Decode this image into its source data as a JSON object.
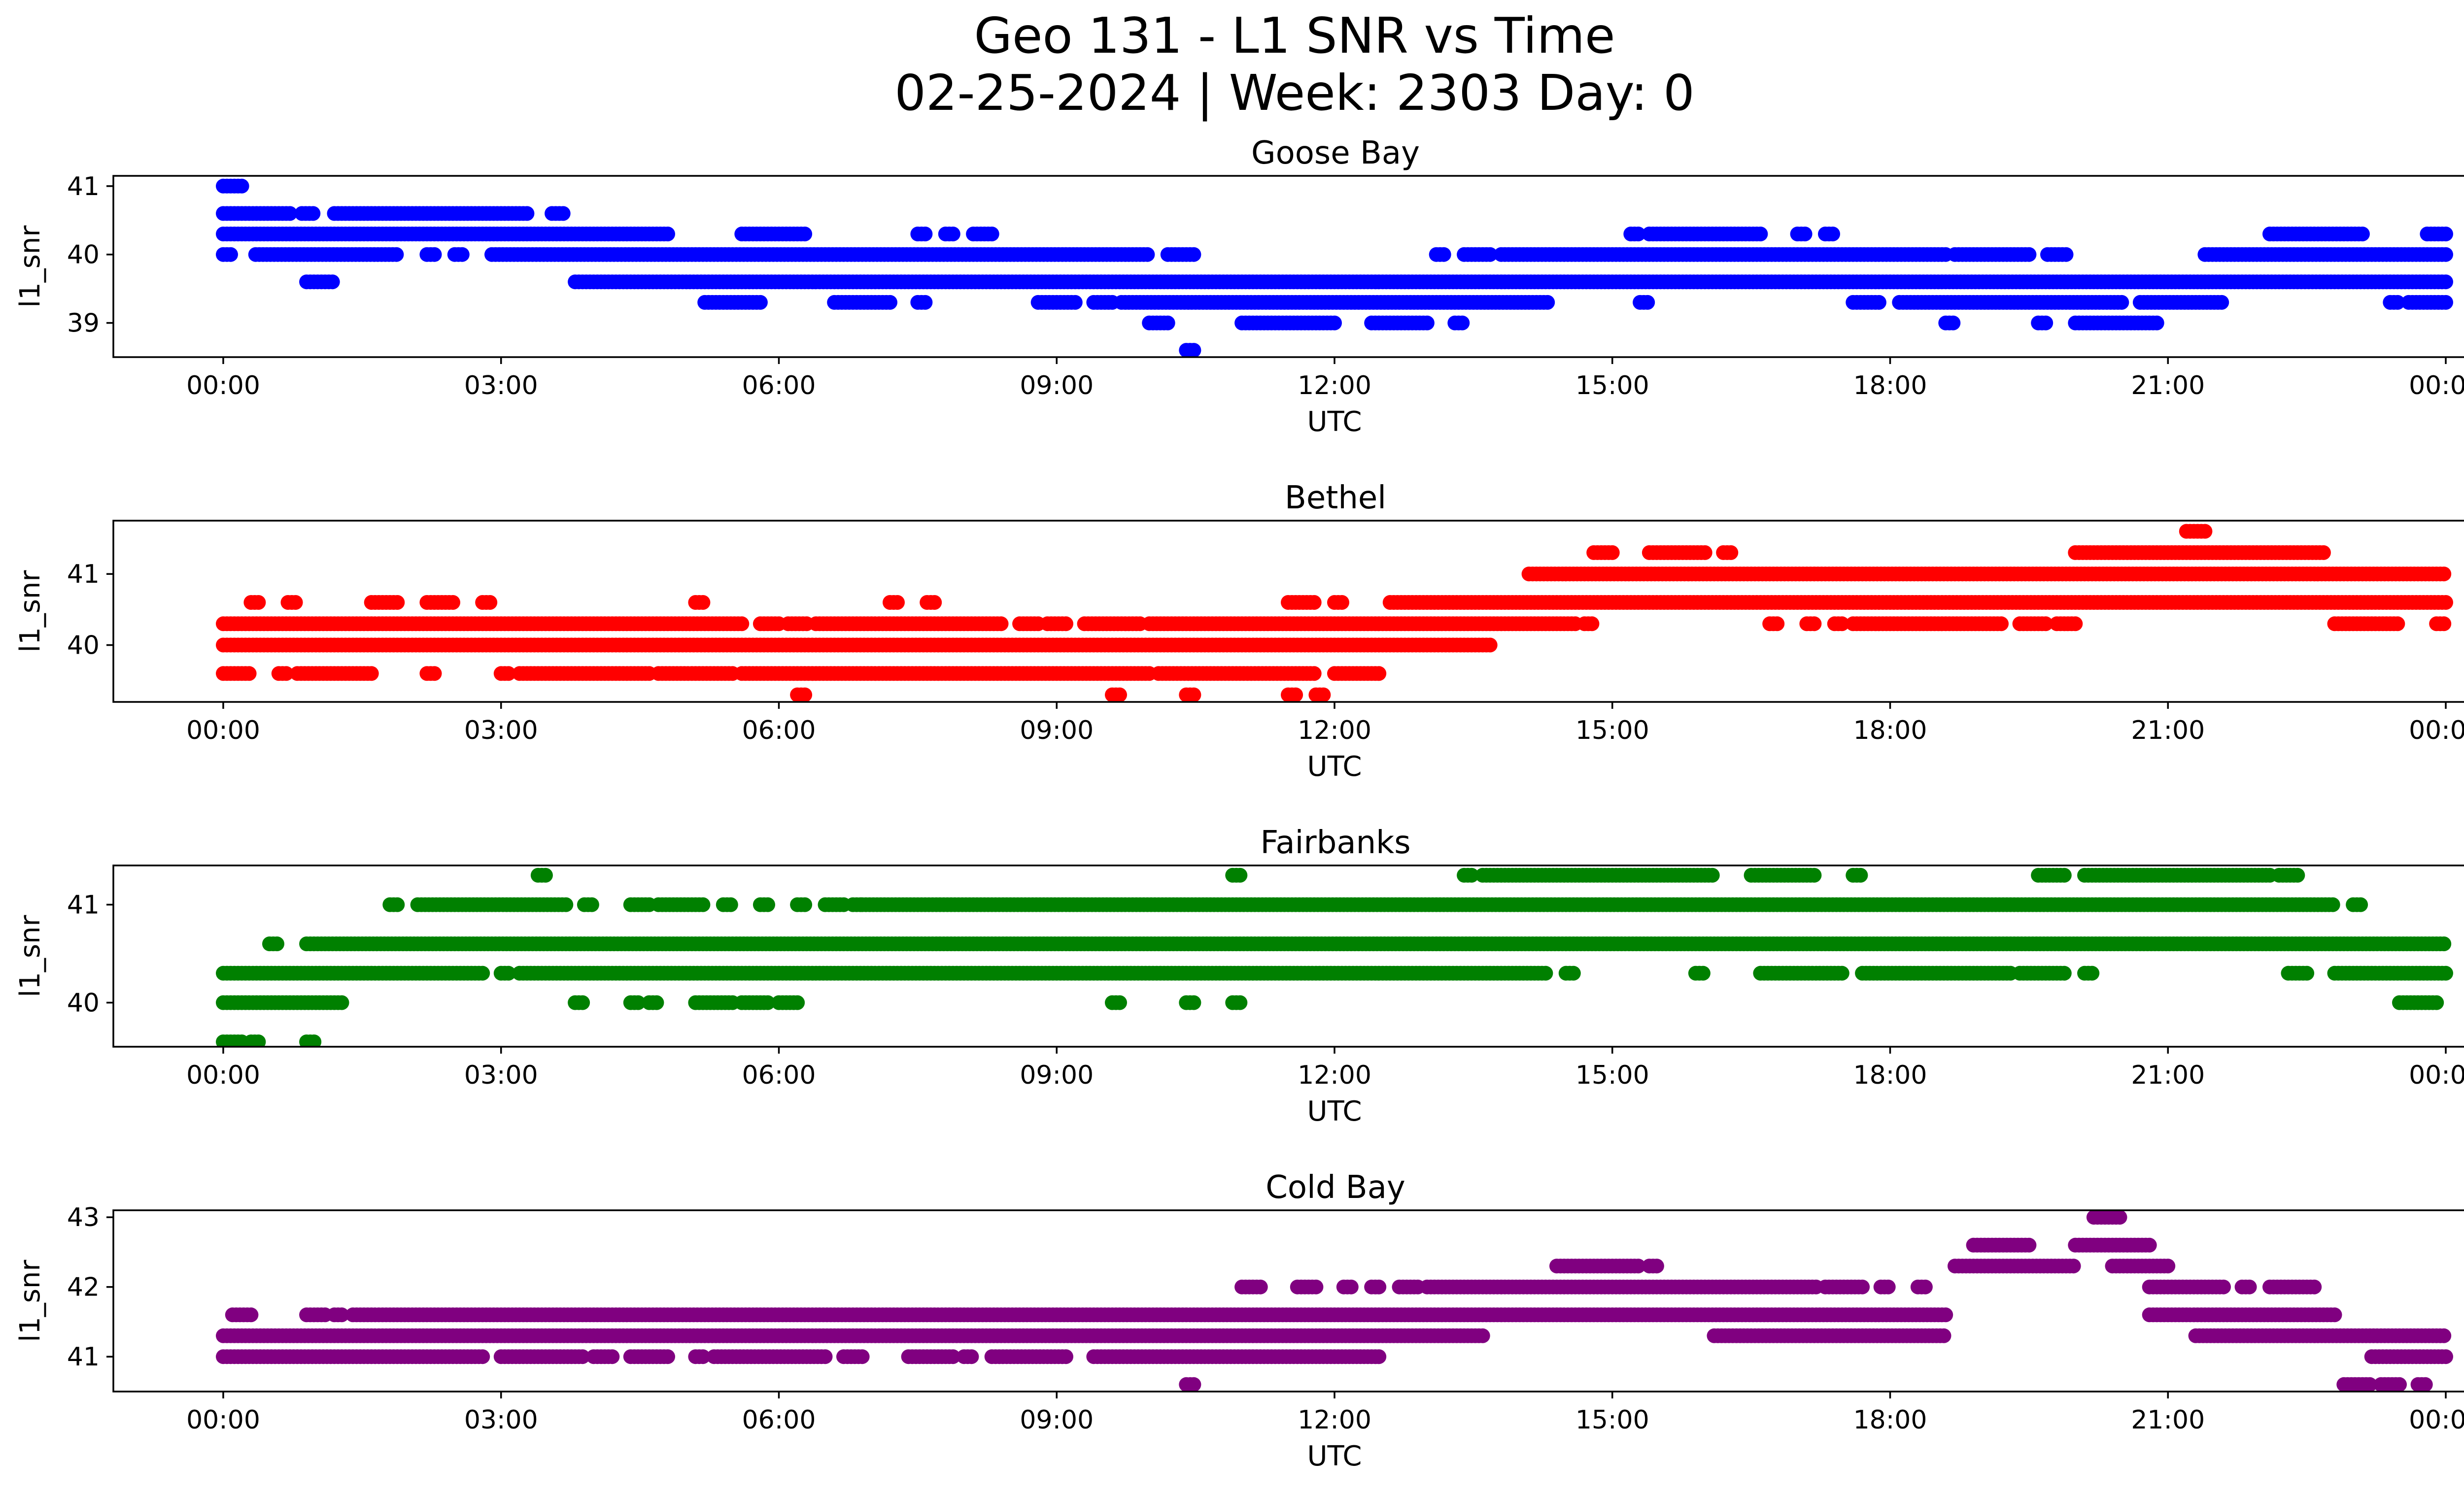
{
  "figure": {
    "title_line1": "Geo 131 - L1 SNR vs Time",
    "title_line2": "02-25-2024 | Week: 2303 Day: 0"
  },
  "chart_data": [
    {
      "type": "scatter",
      "title": "Goose Bay",
      "xlabel": "UTC",
      "ylabel": "l1_snr",
      "color": "#0000ff",
      "xlim": [
        "00:00",
        "24:00"
      ],
      "ylim": [
        38.5,
        41.15
      ],
      "yticks": [
        39,
        40,
        41
      ],
      "xtick_labels": [
        "00:00",
        "03:00",
        "06:00",
        "09:00",
        "12:00",
        "15:00",
        "18:00",
        "21:00",
        "00:00"
      ],
      "bands": [
        {
          "y": 41.0,
          "spans": [
            [
              0.0,
              0.2
            ]
          ]
        },
        {
          "y": 40.6,
          "spans": [
            [
              0.0,
              0.75
            ],
            [
              0.85,
              1.0
            ],
            [
              1.2,
              3.3
            ],
            [
              3.55,
              3.7
            ]
          ]
        },
        {
          "y": 40.3,
          "spans": [
            [
              0.0,
              4.8
            ],
            [
              5.6,
              6.3
            ],
            [
              7.5,
              7.6
            ],
            [
              7.8,
              7.9
            ],
            [
              8.1,
              8.3
            ],
            [
              15.2,
              15.3
            ],
            [
              15.4,
              16.6
            ],
            [
              17.0,
              17.1
            ],
            [
              17.3,
              17.4
            ],
            [
              22.1,
              23.1
            ],
            [
              23.8,
              24.0
            ]
          ]
        },
        {
          "y": 40.0,
          "spans": [
            [
              0.0,
              0.1
            ],
            [
              0.35,
              1.9
            ],
            [
              2.2,
              2.3
            ],
            [
              2.5,
              2.6
            ],
            [
              2.9,
              10.0
            ],
            [
              10.2,
              10.5
            ],
            [
              13.1,
              13.2
            ],
            [
              13.4,
              13.7
            ],
            [
              13.8,
              18.6
            ],
            [
              18.7,
              19.5
            ],
            [
              19.7,
              19.9
            ],
            [
              21.4,
              24.0
            ]
          ]
        },
        {
          "y": 39.6,
          "spans": [
            [
              0.9,
              1.2
            ],
            [
              3.8,
              24.0
            ]
          ]
        },
        {
          "y": 39.3,
          "spans": [
            [
              5.2,
              5.8
            ],
            [
              6.6,
              7.2
            ],
            [
              7.5,
              7.6
            ],
            [
              8.8,
              9.2
            ],
            [
              9.4,
              9.6
            ],
            [
              9.7,
              14.3
            ],
            [
              15.3,
              15.4
            ],
            [
              17.6,
              17.9
            ],
            [
              18.1,
              20.5
            ],
            [
              20.7,
              21.6
            ],
            [
              23.4,
              23.5
            ],
            [
              23.6,
              24.0
            ]
          ]
        },
        {
          "y": 39.0,
          "spans": [
            [
              10.0,
              10.2
            ],
            [
              11.0,
              12.0
            ],
            [
              12.4,
              13.0
            ],
            [
              13.3,
              13.4
            ],
            [
              18.6,
              18.7
            ],
            [
              19.6,
              19.7
            ],
            [
              20.0,
              20.9
            ]
          ]
        },
        {
          "y": 38.6,
          "spans": [
            [
              10.4,
              10.5
            ]
          ]
        }
      ]
    },
    {
      "type": "scatter",
      "title": "Bethel",
      "xlabel": "UTC",
      "ylabel": "l1_snr",
      "color": "#ff0000",
      "xlim": [
        "00:00",
        "24:00"
      ],
      "ylim": [
        39.2,
        41.75
      ],
      "yticks": [
        40,
        41
      ],
      "xtick_labels": [
        "00:00",
        "03:00",
        "06:00",
        "09:00",
        "12:00",
        "15:00",
        "18:00",
        "21:00",
        "00:00"
      ],
      "bands": [
        {
          "y": 41.6,
          "spans": [
            [
              21.2,
              21.4
            ]
          ]
        },
        {
          "y": 41.3,
          "spans": [
            [
              14.8,
              15.0
            ],
            [
              15.4,
              16.0
            ],
            [
              16.2,
              16.3
            ],
            [
              20.0,
              22.7
            ]
          ]
        },
        {
          "y": 41.0,
          "spans": [
            [
              14.1,
              24.0
            ]
          ]
        },
        {
          "y": 40.6,
          "spans": [
            [
              0.3,
              0.4
            ],
            [
              0.7,
              0.8
            ],
            [
              1.6,
              1.9
            ],
            [
              2.2,
              2.5
            ],
            [
              2.8,
              2.9
            ],
            [
              5.1,
              5.2
            ],
            [
              7.2,
              7.3
            ],
            [
              7.6,
              7.7
            ],
            [
              11.5,
              11.8
            ],
            [
              12.0,
              12.1
            ],
            [
              12.6,
              24.0
            ]
          ]
        },
        {
          "y": 40.3,
          "spans": [
            [
              0.0,
              5.6
            ],
            [
              5.8,
              6.0
            ],
            [
              6.1,
              6.3
            ],
            [
              6.4,
              8.4
            ],
            [
              8.6,
              8.8
            ],
            [
              8.9,
              9.1
            ],
            [
              9.3,
              9.9
            ],
            [
              10.0,
              14.6
            ],
            [
              14.7,
              14.8
            ],
            [
              16.7,
              16.8
            ],
            [
              17.1,
              17.2
            ],
            [
              17.4,
              17.5
            ],
            [
              17.6,
              19.2
            ],
            [
              19.4,
              19.7
            ],
            [
              19.8,
              20.0
            ],
            [
              22.8,
              23.5
            ],
            [
              23.9,
              24.0
            ]
          ]
        },
        {
          "y": 40.0,
          "spans": [
            [
              0.0,
              13.7
            ]
          ]
        },
        {
          "y": 39.6,
          "spans": [
            [
              0.0,
              0.3
            ],
            [
              0.6,
              0.7
            ],
            [
              0.8,
              1.6
            ],
            [
              2.2,
              2.3
            ],
            [
              3.0,
              3.1
            ],
            [
              3.2,
              4.6
            ],
            [
              4.7,
              5.5
            ],
            [
              5.6,
              10.0
            ],
            [
              10.1,
              11.8
            ],
            [
              12.0,
              12.5
            ]
          ]
        },
        {
          "y": 39.3,
          "spans": [
            [
              6.2,
              6.3
            ],
            [
              9.6,
              9.7
            ],
            [
              10.4,
              10.5
            ],
            [
              11.5,
              11.6
            ],
            [
              11.8,
              11.9
            ]
          ]
        }
      ]
    },
    {
      "type": "scatter",
      "title": "Fairbanks",
      "xlabel": "UTC",
      "ylabel": "l1_snr",
      "color": "#008000",
      "xlim": [
        "00:00",
        "24:00"
      ],
      "ylim": [
        39.55,
        41.4
      ],
      "yticks": [
        40,
        41
      ],
      "xtick_labels": [
        "00:00",
        "03:00",
        "06:00",
        "09:00",
        "12:00",
        "15:00",
        "18:00",
        "21:00",
        "00:00"
      ],
      "bands": [
        {
          "y": 41.3,
          "spans": [
            [
              3.4,
              3.5
            ],
            [
              10.9,
              11.0
            ],
            [
              13.4,
              13.5
            ],
            [
              13.6,
              16.1
            ],
            [
              16.5,
              17.2
            ],
            [
              17.6,
              17.7
            ],
            [
              19.6,
              19.9
            ],
            [
              20.1,
              22.1
            ],
            [
              22.2,
              22.4
            ]
          ]
        },
        {
          "y": 41.0,
          "spans": [
            [
              1.8,
              1.9
            ],
            [
              2.1,
              3.7
            ],
            [
              3.9,
              4.0
            ],
            [
              4.4,
              4.6
            ],
            [
              4.7,
              5.2
            ],
            [
              5.4,
              5.5
            ],
            [
              5.8,
              5.9
            ],
            [
              6.2,
              6.3
            ],
            [
              6.5,
              6.7
            ],
            [
              6.8,
              6.9
            ],
            [
              6.9,
              22.8
            ],
            [
              23.0,
              23.1
            ]
          ]
        },
        {
          "y": 40.6,
          "spans": [
            [
              0.5,
              0.6
            ],
            [
              0.9,
              24.0
            ]
          ]
        },
        {
          "y": 40.3,
          "spans": [
            [
              0.0,
              2.8
            ],
            [
              3.0,
              3.1
            ],
            [
              3.2,
              14.3
            ],
            [
              14.5,
              14.6
            ],
            [
              15.9,
              16.0
            ],
            [
              16.6,
              17.5
            ],
            [
              17.7,
              19.3
            ],
            [
              19.4,
              19.9
            ],
            [
              20.1,
              20.2
            ],
            [
              22.3,
              22.5
            ],
            [
              22.8,
              24.0
            ]
          ]
        },
        {
          "y": 40.0,
          "spans": [
            [
              0.0,
              1.3
            ],
            [
              3.8,
              3.9
            ],
            [
              4.4,
              4.5
            ],
            [
              4.6,
              4.7
            ],
            [
              5.1,
              5.5
            ],
            [
              5.6,
              5.9
            ],
            [
              6.0,
              6.2
            ],
            [
              9.6,
              9.7
            ],
            [
              10.4,
              10.5
            ],
            [
              10.9,
              11.0
            ],
            [
              23.5,
              23.9
            ]
          ]
        },
        {
          "y": 39.6,
          "spans": [
            [
              0.0,
              0.2
            ],
            [
              0.3,
              0.4
            ],
            [
              0.9,
              1.0
            ]
          ]
        }
      ]
    },
    {
      "type": "scatter",
      "title": "Cold Bay",
      "xlabel": "UTC",
      "ylabel": "l1_snr",
      "color": "#800080",
      "xlim": [
        "00:00",
        "24:00"
      ],
      "ylim": [
        40.5,
        43.1
      ],
      "yticks": [
        41,
        42,
        43
      ],
      "xtick_labels": [
        "00:00",
        "03:00",
        "06:00",
        "09:00",
        "12:00",
        "15:00",
        "18:00",
        "21:00",
        "00:00"
      ],
      "bands": [
        {
          "y": 43.0,
          "spans": [
            [
              20.2,
              20.5
            ]
          ]
        },
        {
          "y": 42.6,
          "spans": [
            [
              18.9,
              19.5
            ],
            [
              20.0,
              20.8
            ]
          ]
        },
        {
          "y": 42.3,
          "spans": [
            [
              14.4,
              15.3
            ],
            [
              15.4,
              15.5
            ],
            [
              18.7,
              20.0
            ],
            [
              20.4,
              21.0
            ]
          ]
        },
        {
          "y": 42.0,
          "spans": [
            [
              11.0,
              11.2
            ],
            [
              11.6,
              11.8
            ],
            [
              12.1,
              12.2
            ],
            [
              12.4,
              12.5
            ],
            [
              12.7,
              12.9
            ],
            [
              13.0,
              17.2
            ],
            [
              17.3,
              17.7
            ],
            [
              17.9,
              18.0
            ],
            [
              18.3,
              18.4
            ],
            [
              20.8,
              21.6
            ],
            [
              21.8,
              21.9
            ],
            [
              22.1,
              22.6
            ]
          ]
        },
        {
          "y": 41.6,
          "spans": [
            [
              0.1,
              0.3
            ],
            [
              0.9,
              1.1
            ],
            [
              1.2,
              1.3
            ],
            [
              1.4,
              18.6
            ],
            [
              20.8,
              22.8
            ]
          ]
        },
        {
          "y": 41.3,
          "spans": [
            [
              0.0,
              13.6
            ],
            [
              16.1,
              18.6
            ],
            [
              21.3,
              24.0
            ]
          ]
        },
        {
          "y": 41.0,
          "spans": [
            [
              0.0,
              2.8
            ],
            [
              3.0,
              3.9
            ],
            [
              4.0,
              4.2
            ],
            [
              4.4,
              4.8
            ],
            [
              5.1,
              5.2
            ],
            [
              5.3,
              6.5
            ],
            [
              6.7,
              6.9
            ],
            [
              7.4,
              7.9
            ],
            [
              8.0,
              8.1
            ],
            [
              8.3,
              9.1
            ],
            [
              9.4,
              12.5
            ],
            [
              23.2,
              24.0
            ]
          ]
        },
        {
          "y": 40.6,
          "spans": [
            [
              10.4,
              10.5
            ],
            [
              22.9,
              23.2
            ],
            [
              23.3,
              23.5
            ],
            [
              23.7,
              23.8
            ]
          ]
        }
      ]
    }
  ]
}
